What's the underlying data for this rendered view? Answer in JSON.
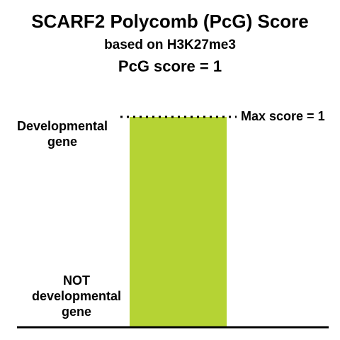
{
  "chart_data": {
    "type": "bar",
    "title": "SCARF2 Polycomb (PcG) Score",
    "subtitle": "based on H3K27me3",
    "score_text": "PcG score = 1",
    "categories": [
      "SCARF2"
    ],
    "values": [
      1
    ],
    "ylim": [
      0,
      1
    ],
    "y_top_label": [
      "Developmental",
      "gene"
    ],
    "y_bottom_label": [
      "NOT",
      "developmental",
      "gene"
    ],
    "reference_line": {
      "value": 1,
      "label": "Max score = 1",
      "style": "dotted"
    },
    "grid": false,
    "legend": "none",
    "bar_color": "#b5d334",
    "axis_color": "#000000"
  }
}
